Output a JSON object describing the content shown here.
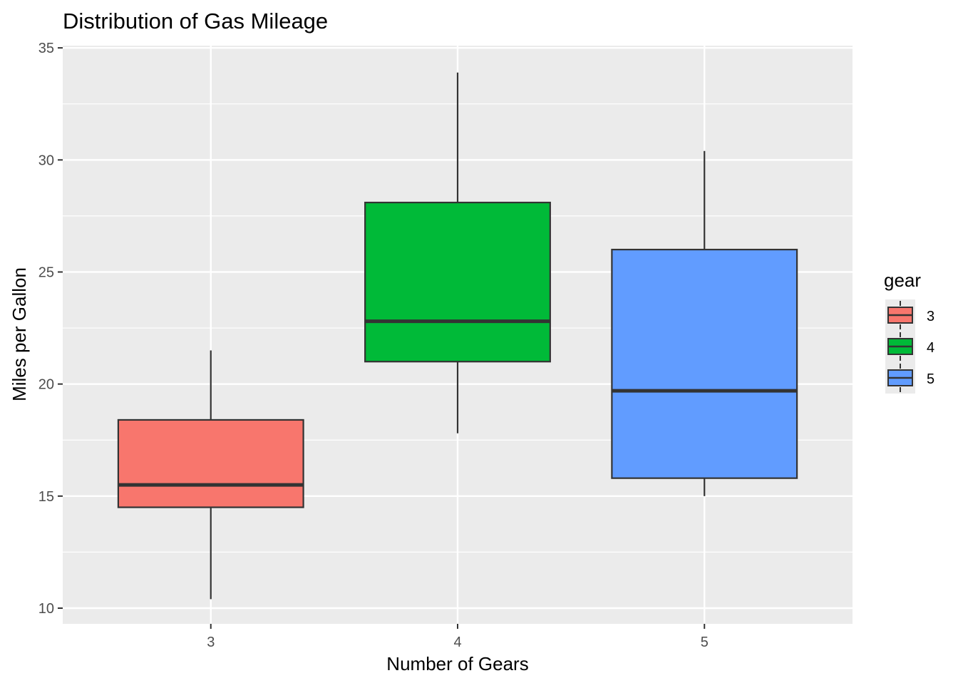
{
  "chart_data": {
    "type": "boxplot",
    "title": "Distribution of Gas Mileage",
    "xlabel": "Number of Gears",
    "ylabel": "Miles per Gallon",
    "ylim": [
      9.3,
      35.1
    ],
    "y_ticks": [
      10,
      15,
      20,
      25,
      30,
      35
    ],
    "categories": [
      "3",
      "4",
      "5"
    ],
    "legend": {
      "title": "gear",
      "position": "right",
      "entries": [
        "3",
        "4",
        "5"
      ]
    },
    "colors": {
      "3": "#F8766D",
      "4": "#00BA38",
      "5": "#619CFF",
      "panel": "#EBEBEB",
      "grid": "#FFFFFF",
      "outline": "#333333"
    },
    "boxes": [
      {
        "category": "3",
        "min": 10.4,
        "q1": 14.5,
        "median": 15.5,
        "q3": 18.4,
        "max": 21.5
      },
      {
        "category": "4",
        "min": 17.8,
        "q1": 21.0,
        "median": 22.8,
        "q3": 28.1,
        "max": 33.9
      },
      {
        "category": "5",
        "min": 15.0,
        "q1": 15.8,
        "median": 19.7,
        "q3": 26.0,
        "max": 30.4
      }
    ]
  }
}
